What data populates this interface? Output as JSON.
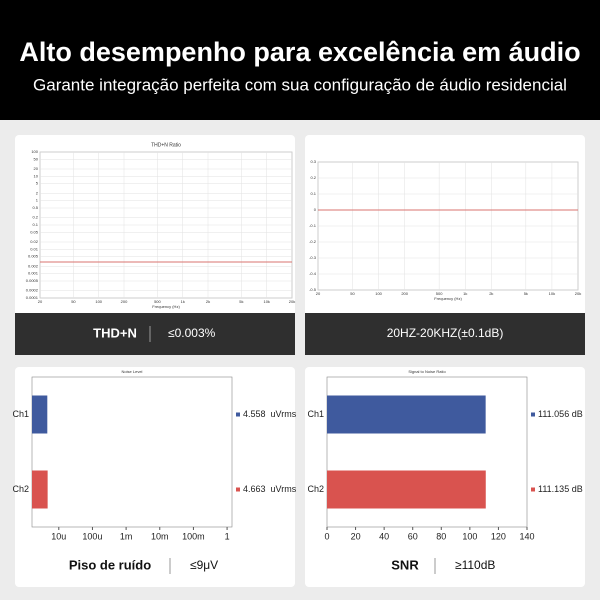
{
  "header": {
    "title": "Alto desempenho para excelência em áudio",
    "subtitle": "Garante integração perfeita com sua configuração de áudio residencial"
  },
  "captions": [
    {
      "label": "THD+N",
      "value": "≤0.003%"
    },
    {
      "value": "20HZ-20KHZ(±0.1dB)"
    },
    {
      "label": "Piso de ruído",
      "value": "≤9μV"
    },
    {
      "label": "SNR",
      "value": "≥110dB"
    }
  ],
  "chart_data": [
    {
      "type": "line",
      "title": "THD+N Ratio",
      "x_label": "Frequency (Hz)",
      "xscale": "log",
      "yscale": "log",
      "xlim": [
        20,
        20000
      ],
      "ylim": [
        0.0001,
        100
      ],
      "xticks": [
        20,
        50,
        100,
        200,
        500,
        {
          "value": 1000,
          "label": "1k"
        },
        {
          "value": 2000,
          "label": "2k"
        },
        {
          "value": 5000,
          "label": "5k"
        },
        {
          "value": 10000,
          "label": "10k"
        },
        {
          "value": 20000,
          "label": "20k"
        }
      ],
      "yticks": [
        100,
        50,
        20,
        10,
        5,
        2,
        1,
        0.5,
        0.2,
        0.1,
        0.05,
        0.02,
        0.01,
        0.005,
        0.002,
        0.001,
        0.0005,
        0.0002,
        0.0001
      ],
      "x": [
        20,
        100,
        1000,
        10000,
        20000
      ],
      "series": [
        {
          "color": "#d9736f",
          "values": [
            0.003,
            0.003,
            0.003,
            0.003,
            0.003
          ]
        }
      ],
      "grid": true
    },
    {
      "type": "line",
      "x_label": "Frequency (Hz)",
      "xscale": "log",
      "yscale": "linear",
      "xlim": [
        20,
        20000
      ],
      "ylim": [
        -0.5,
        0.3
      ],
      "xticks": [
        20,
        50,
        100,
        200,
        500,
        {
          "value": 1000,
          "label": "1k"
        },
        {
          "value": 2000,
          "label": "2k"
        },
        {
          "value": 5000,
          "label": "5k"
        },
        {
          "value": 10000,
          "label": "10k"
        },
        {
          "value": 20000,
          "label": "20k"
        }
      ],
      "yticks": [
        0.3,
        0.2,
        0.1,
        0,
        -0.1,
        -0.2,
        -0.3,
        -0.4,
        -0.5
      ],
      "x": [
        20,
        100,
        1000,
        10000,
        20000
      ],
      "series": [
        {
          "color": "#d9736f",
          "values": [
            0,
            0,
            0,
            0,
            0
          ]
        }
      ],
      "grid": true
    },
    {
      "type": "hbar",
      "title": "Noise Level",
      "xscale": "log",
      "xlim": [
        1.6e-06,
        1.4
      ],
      "xticks": [
        {
          "value": 1e-05,
          "label": "10u"
        },
        {
          "value": 0.0001,
          "label": "100u"
        },
        {
          "value": 0.001,
          "label": "1m"
        },
        {
          "value": 0.01,
          "label": "10m"
        },
        {
          "value": 0.1,
          "label": "100m"
        },
        1
      ],
      "categories": [
        "Ch1",
        "Ch2"
      ],
      "colors": [
        "#3f5a9e",
        "#d9534f"
      ],
      "values": [
        4.558e-06,
        4.663e-06
      ],
      "value_labels": [
        "4.558  uVrms",
        "4.663  uVrms"
      ]
    },
    {
      "type": "hbar",
      "title": "Signal to Noise Ratio",
      "xscale": "linear",
      "xlim": [
        0,
        140
      ],
      "xticks": [
        0,
        20,
        40,
        60,
        80,
        100,
        120,
        140
      ],
      "categories": [
        "Ch1",
        "Ch2"
      ],
      "colors": [
        "#3f5a9e",
        "#d9534f"
      ],
      "values": [
        111.056,
        111.135
      ],
      "value_labels": [
        "111.056 dB",
        "111.135 dB"
      ]
    }
  ]
}
